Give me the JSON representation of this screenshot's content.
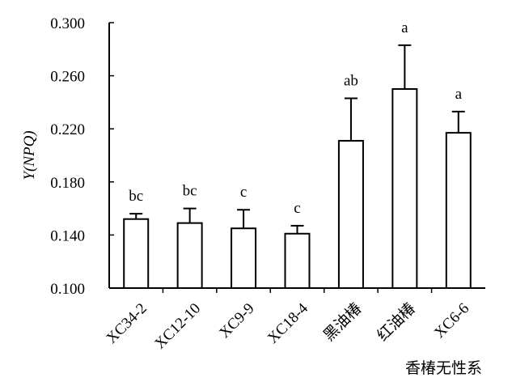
{
  "chart_data": {
    "type": "bar",
    "title": "",
    "ylabel": "Y(NPQ)",
    "xlabel": "香椿无性系",
    "categories": [
      "XC34-2",
      "XC12-10",
      "XC9-9",
      "XC18-4",
      "黑油椿",
      "红油椿",
      "XC6-6"
    ],
    "values": [
      0.152,
      0.149,
      0.145,
      0.141,
      0.211,
      0.25,
      0.217
    ],
    "error_upper": [
      0.004,
      0.011,
      0.014,
      0.006,
      0.032,
      0.033,
      0.016
    ],
    "significance": [
      "bc",
      "bc",
      "c",
      "c",
      "ab",
      "a",
      "a"
    ],
    "ylim": [
      0.1,
      0.3
    ],
    "yticks": [
      "0.100",
      "0.140",
      "0.180",
      "0.220",
      "0.260",
      "0.300"
    ],
    "ytick_values": [
      0.1,
      0.14,
      0.18,
      0.22,
      0.26,
      0.3
    ],
    "grid": false,
    "bar_fill": "#ffffff",
    "bar_stroke": "#000000"
  }
}
